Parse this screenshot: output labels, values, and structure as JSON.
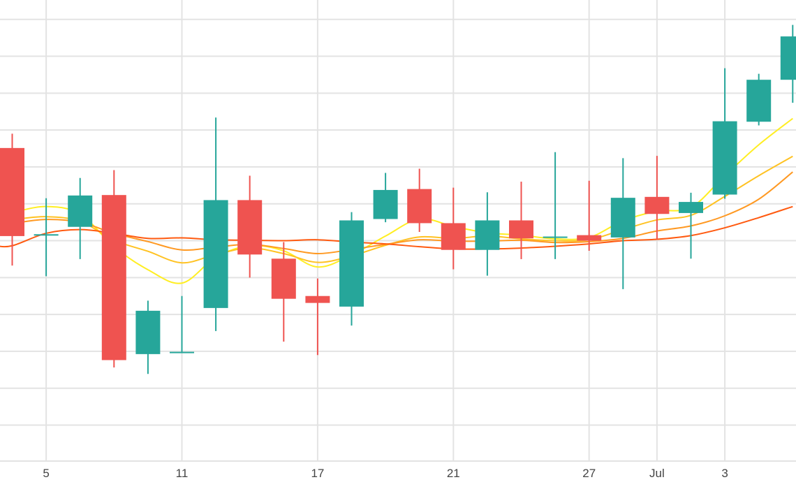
{
  "chart_data": {
    "type": "candlestick",
    "title": "",
    "xlabel": "",
    "ylabel": "",
    "ylim": [
      0,
      100
    ],
    "x_tick_labels": [
      {
        "at": 1,
        "label": "5"
      },
      {
        "at": 5,
        "label": "11"
      },
      {
        "at": 9,
        "label": "17"
      },
      {
        "at": 13,
        "label": "21"
      },
      {
        "at": 17,
        "label": "27"
      },
      {
        "at": 19,
        "label": "Jul"
      },
      {
        "at": 21,
        "label": "3"
      }
    ],
    "y_gridlines": [
      7.8,
      15.8,
      23.8,
      31.8,
      39.8,
      47.8,
      55.8,
      63.8,
      71.8,
      79.8,
      87.8,
      95.8
    ],
    "grid": true,
    "legend": "none",
    "colors": {
      "up": "#26a69a",
      "down": "#ef5350",
      "grid": "#e3e3e3",
      "ma_series": [
        "#ffee22",
        "#ffc222",
        "#ff9922",
        "#ff5a10"
      ]
    },
    "candles": [
      {
        "i": 0,
        "open": 67.9,
        "high": 71.0,
        "low": 42.4,
        "close": 48.8
      },
      {
        "i": 1,
        "open": 49.2,
        "high": 57.0,
        "low": 40.1,
        "close": 49.2
      },
      {
        "i": 2,
        "open": 50.8,
        "high": 61.4,
        "low": 43.8,
        "close": 57.6
      },
      {
        "i": 3,
        "open": 57.7,
        "high": 63.1,
        "low": 20.3,
        "close": 21.9
      },
      {
        "i": 4,
        "open": 23.2,
        "high": 34.8,
        "low": 18.9,
        "close": 32.6
      },
      {
        "i": 5,
        "open": 23.7,
        "high": 35.8,
        "low": 23.7,
        "close": 23.7
      },
      {
        "i": 6,
        "open": 33.2,
        "high": 74.5,
        "low": 28.2,
        "close": 56.6
      },
      {
        "i": 7,
        "open": 56.6,
        "high": 61.9,
        "low": 39.8,
        "close": 44.8
      },
      {
        "i": 8,
        "open": 43.9,
        "high": 47.5,
        "low": 25.9,
        "close": 35.2
      },
      {
        "i": 9,
        "open": 35.8,
        "high": 39.6,
        "low": 23.0,
        "close": 34.3
      },
      {
        "i": 10,
        "open": 33.5,
        "high": 54.0,
        "low": 29.4,
        "close": 52.2
      },
      {
        "i": 11,
        "open": 52.5,
        "high": 62.5,
        "low": 51.8,
        "close": 58.8
      },
      {
        "i": 12,
        "open": 59.0,
        "high": 63.4,
        "low": 49.7,
        "close": 51.6
      },
      {
        "i": 13,
        "open": 51.6,
        "high": 59.3,
        "low": 41.6,
        "close": 45.8
      },
      {
        "i": 14,
        "open": 45.8,
        "high": 58.3,
        "low": 40.2,
        "close": 52.2
      },
      {
        "i": 15,
        "open": 52.2,
        "high": 60.6,
        "low": 43.8,
        "close": 48.3
      },
      {
        "i": 16,
        "open": 48.7,
        "high": 67.0,
        "low": 43.8,
        "close": 48.7
      },
      {
        "i": 17,
        "open": 49.0,
        "high": 60.8,
        "low": 45.6,
        "close": 47.8
      },
      {
        "i": 18,
        "open": 48.5,
        "high": 65.7,
        "low": 37.3,
        "close": 57.1
      },
      {
        "i": 19,
        "open": 57.3,
        "high": 66.2,
        "low": 48.1,
        "close": 53.6
      },
      {
        "i": 20,
        "open": 53.8,
        "high": 58.2,
        "low": 43.9,
        "close": 56.2
      },
      {
        "i": 21,
        "open": 57.8,
        "high": 85.2,
        "low": 56.9,
        "close": 73.7
      },
      {
        "i": 22,
        "open": 73.6,
        "high": 84.0,
        "low": 72.8,
        "close": 82.7
      },
      {
        "i": 23,
        "open": 82.7,
        "high": 94.6,
        "low": 77.7,
        "close": 92.1
      }
    ],
    "moving_averages": [
      {
        "color": "#ffee22",
        "values": [
          54.0,
          55.2,
          53.6,
          46.5,
          41.5,
          38.6,
          44.2,
          46.7,
          45.6,
          42.1,
          44.7,
          48.8,
          52.5,
          50.9,
          49.5,
          49.0,
          48.2,
          48.5,
          52.1,
          54.2,
          55.0,
          61.9,
          68.6,
          74.3
        ]
      },
      {
        "color": "#ffc222",
        "values": [
          52.4,
          53.0,
          52.0,
          47.9,
          45.5,
          43.0,
          44.8,
          46.2,
          45.0,
          43.1,
          44.5,
          46.8,
          48.6,
          48.3,
          48.8,
          48.2,
          47.8,
          48.0,
          50.2,
          52.3,
          53.3,
          57.4,
          61.9,
          66.1
        ]
      },
      {
        "color": "#ff9922",
        "values": [
          51.6,
          52.4,
          51.8,
          49.4,
          47.6,
          45.8,
          46.4,
          47.0,
          46.1,
          45.0,
          45.9,
          47.0,
          48.0,
          47.7,
          47.7,
          47.9,
          47.4,
          47.6,
          48.3,
          49.9,
          51.0,
          53.2,
          56.8,
          62.7
        ]
      },
      {
        "color": "#ff5a10",
        "values": [
          46.7,
          49.4,
          50.2,
          49.4,
          48.3,
          48.4,
          48.0,
          47.9,
          47.8,
          48.0,
          47.5,
          47.1,
          46.5,
          46.0,
          46.0,
          46.2,
          46.6,
          47.1,
          47.8,
          48.1,
          48.9,
          50.6,
          52.8,
          55.2
        ]
      }
    ]
  }
}
